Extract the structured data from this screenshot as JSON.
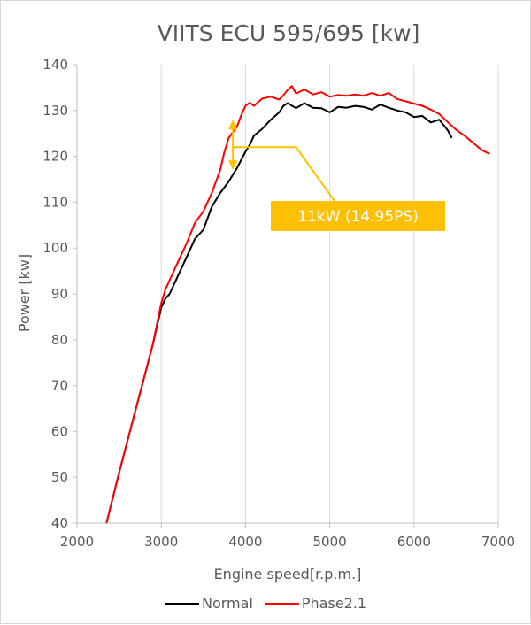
{
  "chart_data": {
    "type": "line",
    "title": "VIITS ECU 595/695 [kw]",
    "xlabel": "Engine speed[r.p.m.]",
    "ylabel": "Power [kw]",
    "xlim": [
      2000,
      7000
    ],
    "ylim": [
      40,
      140
    ],
    "xticks": [
      2000,
      3000,
      4000,
      5000,
      6000,
      7000
    ],
    "yticks": [
      40,
      50,
      60,
      70,
      80,
      90,
      100,
      110,
      120,
      130,
      140
    ],
    "grid": "vertical",
    "legend": "bottom",
    "series": [
      {
        "name": "Normal",
        "color": "#000000",
        "x": [
          2350,
          2500,
          2600,
          2700,
          2800,
          2900,
          3000,
          3050,
          3100,
          3200,
          3300,
          3400,
          3500,
          3600,
          3650,
          3700,
          3800,
          3900,
          4000,
          4050,
          4100,
          4200,
          4300,
          4400,
          4450,
          4500,
          4600,
          4700,
          4800,
          4900,
          5000,
          5100,
          5200,
          5300,
          5400,
          5500,
          5600,
          5700,
          5800,
          5900,
          6000,
          6100,
          6200,
          6300,
          6400,
          6450
        ],
        "y": [
          40,
          51,
          58,
          65,
          72,
          79,
          87,
          89,
          90,
          94,
          98,
          102,
          104,
          109,
          110.5,
          112,
          114.5,
          117.5,
          121,
          122.5,
          124.5,
          126,
          128,
          129.6,
          131,
          131.6,
          130.5,
          131.6,
          130.6,
          130.5,
          129.6,
          130.8,
          130.6,
          131,
          130.8,
          130.2,
          131.3,
          130.6,
          130,
          129.6,
          128.6,
          128.8,
          127.4,
          128,
          125.7,
          124
        ]
      },
      {
        "name": "Phase2.1",
        "color": "#ff0000",
        "x": [
          2350,
          2500,
          2600,
          2700,
          2800,
          2900,
          3000,
          3050,
          3100,
          3200,
          3300,
          3400,
          3500,
          3600,
          3700,
          3750,
          3800,
          3900,
          3950,
          4000,
          4050,
          4100,
          4200,
          4300,
          4400,
          4450,
          4500,
          4550,
          4600,
          4700,
          4800,
          4900,
          5000,
          5100,
          5200,
          5300,
          5400,
          5500,
          5600,
          5700,
          5800,
          5900,
          6000,
          6100,
          6200,
          6300,
          6400,
          6500,
          6600,
          6700,
          6800,
          6900
        ],
        "y": [
          40,
          51,
          58,
          65,
          72,
          79,
          88,
          91,
          93,
          97,
          101,
          105.5,
          108,
          112,
          117,
          121,
          124,
          126.5,
          129,
          131,
          131.7,
          131,
          132.6,
          133,
          132.4,
          133.3,
          134.5,
          135.3,
          133.7,
          134.6,
          133.5,
          134,
          133,
          133.4,
          133.2,
          133.5,
          133.2,
          133.8,
          133.2,
          133.8,
          132.5,
          132,
          131.5,
          131,
          130.2,
          129.2,
          127.5,
          125.8,
          124.5,
          123,
          121.4,
          120.5
        ]
      }
    ],
    "annotation": {
      "text": "11kW (14.95PS)",
      "x": 3850,
      "y_low": 117,
      "y_high": 128,
      "color": "#ffc000"
    }
  }
}
